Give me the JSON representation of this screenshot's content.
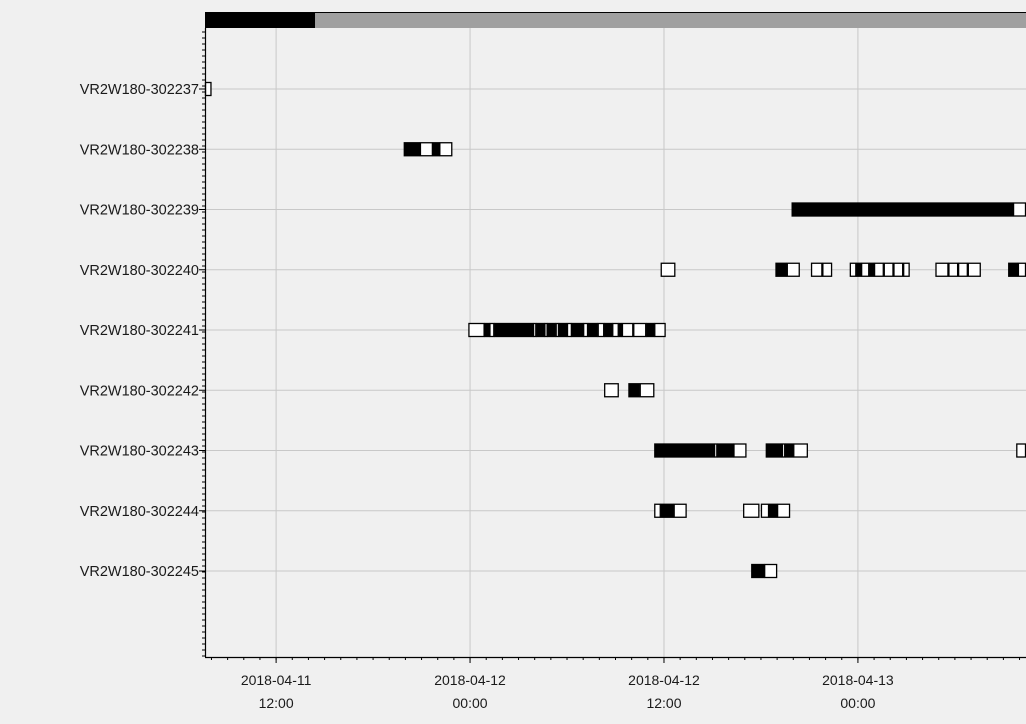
{
  "chart_data": {
    "type": "timeline",
    "time_unit": "hours",
    "colors": {
      "detection_fill": "#000000",
      "detection_open": "#ffffff",
      "gridline": "#c8c8c8",
      "plot_background": "#f0f0f0",
      "scrollbar_thumb": "#000000",
      "scrollbar_track": "#a0a0a0"
    },
    "grid": true,
    "x_ticks": [
      {
        "label_date": "2018-04-11",
        "label_time": "12:00",
        "hours": 0
      },
      {
        "label_date": "2018-04-12",
        "label_time": "00:00",
        "hours": 12
      },
      {
        "label_date": "2018-04-12",
        "label_time": "12:00",
        "hours": 24
      },
      {
        "label_date": "2018-04-13",
        "label_time": "00:00",
        "hours": 36
      }
    ],
    "x_range_hours": [
      -4.4,
      46.4
    ],
    "scrollbar_thumb_fraction": [
      0,
      0.134
    ],
    "series": [
      {
        "receiver": "VR2W180-302237",
        "detections": [
          {
            "start": -4.4,
            "end": -4.0,
            "filled": false
          }
        ]
      },
      {
        "receiver": "VR2W180-302238",
        "detections": [
          {
            "start": 7.9,
            "end": 8.9,
            "filled": true
          },
          {
            "start": 8.9,
            "end": 9.7,
            "filled": false
          },
          {
            "start": 9.7,
            "end": 10.1,
            "filled": true
          },
          {
            "start": 10.1,
            "end": 10.9,
            "filled": false
          }
        ]
      },
      {
        "receiver": "VR2W180-302239",
        "detections": [
          {
            "start": 31.9,
            "end": 45.6,
            "filled": true
          },
          {
            "start": 45.6,
            "end": 46.4,
            "filled": false
          }
        ]
      },
      {
        "receiver": "VR2W180-302240",
        "detections": [
          {
            "start": 23.8,
            "end": 24.7,
            "filled": false
          },
          {
            "start": 30.9,
            "end": 31.6,
            "filled": true
          },
          {
            "start": 31.6,
            "end": 32.4,
            "filled": false
          },
          {
            "start": 33.1,
            "end": 33.8,
            "filled": false
          },
          {
            "start": 33.8,
            "end": 34.4,
            "filled": false
          },
          {
            "start": 35.5,
            "end": 35.9,
            "filled": false
          },
          {
            "start": 35.9,
            "end": 36.2,
            "filled": true
          },
          {
            "start": 36.2,
            "end": 36.7,
            "filled": false
          },
          {
            "start": 36.7,
            "end": 37.0,
            "filled": true
          },
          {
            "start": 37.0,
            "end": 37.6,
            "filled": false
          },
          {
            "start": 37.6,
            "end": 38.2,
            "filled": false
          },
          {
            "start": 38.2,
            "end": 38.8,
            "filled": false
          },
          {
            "start": 38.8,
            "end": 39.2,
            "filled": false
          },
          {
            "start": 40.8,
            "end": 41.6,
            "filled": false
          },
          {
            "start": 41.6,
            "end": 42.2,
            "filled": false
          },
          {
            "start": 42.2,
            "end": 42.8,
            "filled": false
          },
          {
            "start": 42.8,
            "end": 43.6,
            "filled": false
          },
          {
            "start": 45.3,
            "end": 45.9,
            "filled": true
          },
          {
            "start": 45.9,
            "end": 46.4,
            "filled": false
          }
        ]
      },
      {
        "receiver": "VR2W180-302241",
        "detections": [
          {
            "start": 11.9,
            "end": 12.9,
            "filled": false
          },
          {
            "start": 12.9,
            "end": 13.2,
            "filled": true
          },
          {
            "start": 13.2,
            "end": 13.5,
            "filled": false
          },
          {
            "start": 13.5,
            "end": 15.9,
            "filled": true
          },
          {
            "start": 15.9,
            "end": 16.1,
            "filled": false
          },
          {
            "start": 16.1,
            "end": 16.6,
            "filled": true
          },
          {
            "start": 16.6,
            "end": 16.8,
            "filled": false
          },
          {
            "start": 16.8,
            "end": 17.3,
            "filled": true
          },
          {
            "start": 17.3,
            "end": 17.5,
            "filled": false
          },
          {
            "start": 17.5,
            "end": 18.0,
            "filled": true
          },
          {
            "start": 18.0,
            "end": 18.3,
            "filled": false
          },
          {
            "start": 18.3,
            "end": 19.0,
            "filled": true
          },
          {
            "start": 19.0,
            "end": 19.3,
            "filled": false
          },
          {
            "start": 19.3,
            "end": 19.9,
            "filled": true
          },
          {
            "start": 19.9,
            "end": 20.3,
            "filled": false
          },
          {
            "start": 20.3,
            "end": 20.8,
            "filled": true
          },
          {
            "start": 20.8,
            "end": 21.2,
            "filled": false
          },
          {
            "start": 21.2,
            "end": 21.4,
            "filled": true
          },
          {
            "start": 21.4,
            "end": 22.1,
            "filled": false
          },
          {
            "start": 22.1,
            "end": 22.9,
            "filled": false
          },
          {
            "start": 22.9,
            "end": 23.4,
            "filled": true
          },
          {
            "start": 23.4,
            "end": 24.1,
            "filled": false
          }
        ]
      },
      {
        "receiver": "VR2W180-302242",
        "detections": [
          {
            "start": 20.3,
            "end": 21.2,
            "filled": false
          },
          {
            "start": 21.8,
            "end": 22.5,
            "filled": true
          },
          {
            "start": 22.5,
            "end": 23.4,
            "filled": false
          }
        ]
      },
      {
        "receiver": "VR2W180-302243",
        "detections": [
          {
            "start": 23.4,
            "end": 27.1,
            "filled": true
          },
          {
            "start": 27.1,
            "end": 27.3,
            "filled": false
          },
          {
            "start": 27.3,
            "end": 28.3,
            "filled": true
          },
          {
            "start": 28.3,
            "end": 29.1,
            "filled": false
          },
          {
            "start": 30.3,
            "end": 31.3,
            "filled": true
          },
          {
            "start": 31.3,
            "end": 31.5,
            "filled": false
          },
          {
            "start": 31.5,
            "end": 32.0,
            "filled": true
          },
          {
            "start": 32.0,
            "end": 32.9,
            "filled": false
          },
          {
            "start": 45.8,
            "end": 46.4,
            "filled": false
          }
        ]
      },
      {
        "receiver": "VR2W180-302244",
        "detections": [
          {
            "start": 23.4,
            "end": 23.8,
            "filled": false
          },
          {
            "start": 23.8,
            "end": 24.6,
            "filled": true
          },
          {
            "start": 24.6,
            "end": 25.4,
            "filled": false
          },
          {
            "start": 28.9,
            "end": 29.9,
            "filled": false
          },
          {
            "start": 30.0,
            "end": 30.5,
            "filled": false
          },
          {
            "start": 30.5,
            "end": 31.0,
            "filled": true
          },
          {
            "start": 31.0,
            "end": 31.8,
            "filled": false
          }
        ]
      },
      {
        "receiver": "VR2W180-302245",
        "detections": [
          {
            "start": 29.4,
            "end": 30.2,
            "filled": true
          },
          {
            "start": 30.2,
            "end": 31.0,
            "filled": false
          }
        ]
      }
    ]
  }
}
